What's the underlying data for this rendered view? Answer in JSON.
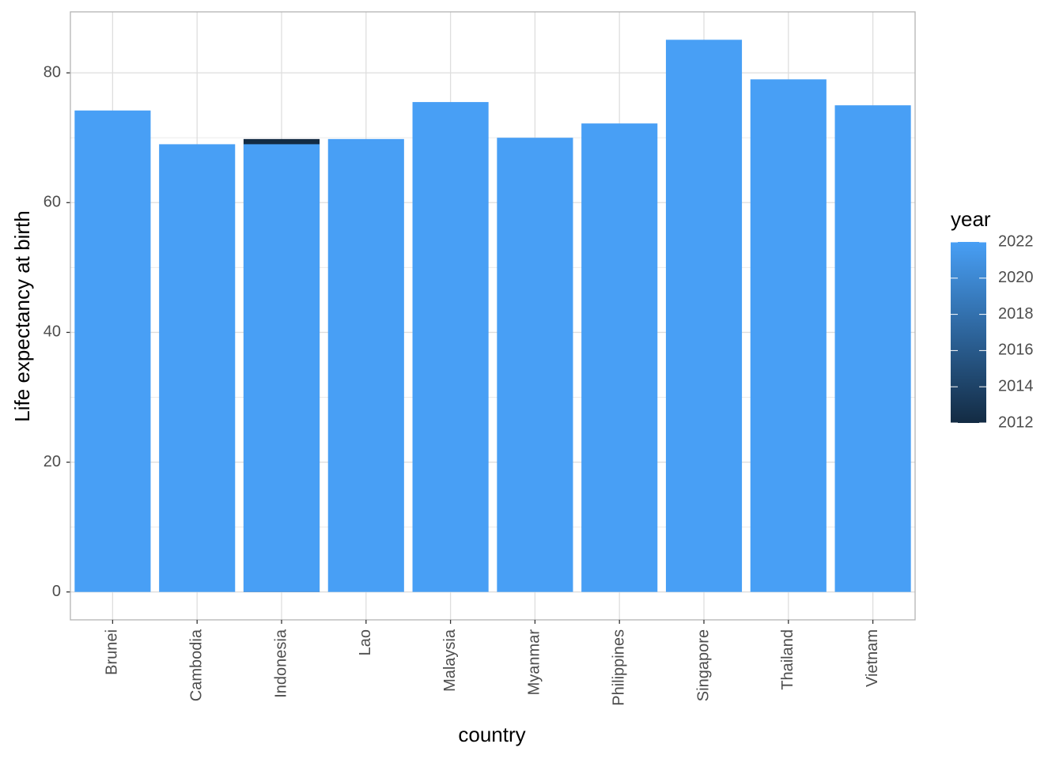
{
  "chart_data": {
    "type": "bar",
    "position": "identity",
    "x_label": "country",
    "y_label": "Life expectancy at birth",
    "categories": [
      "Brunei",
      "Cambodia",
      "Indonesia",
      "Lao",
      "Malaysia",
      "Myanmar",
      "Philippines",
      "Singapore",
      "Thailand",
      "Vietnam"
    ],
    "series": [
      {
        "year": 2012,
        "values": [
          null,
          null,
          69.8,
          null,
          null,
          null,
          null,
          null,
          null,
          null
        ]
      },
      {
        "year": 2022,
        "values": [
          74.2,
          69.0,
          69.0,
          69.8,
          75.5,
          70.0,
          72.2,
          85.1,
          79.0,
          75.0
        ]
      }
    ],
    "ylim": [
      -4.3,
      89.4
    ],
    "yticks": [
      0,
      20,
      40,
      60,
      80
    ],
    "minor_yticks": [
      10,
      30,
      50,
      70
    ],
    "grid": true,
    "legend": {
      "title": "year",
      "low_color": "#132B43",
      "high_color": "#489FF5",
      "lim": [
        2012,
        2022
      ],
      "ticks": [
        2012,
        2014,
        2016,
        2018,
        2020,
        2022
      ]
    }
  }
}
